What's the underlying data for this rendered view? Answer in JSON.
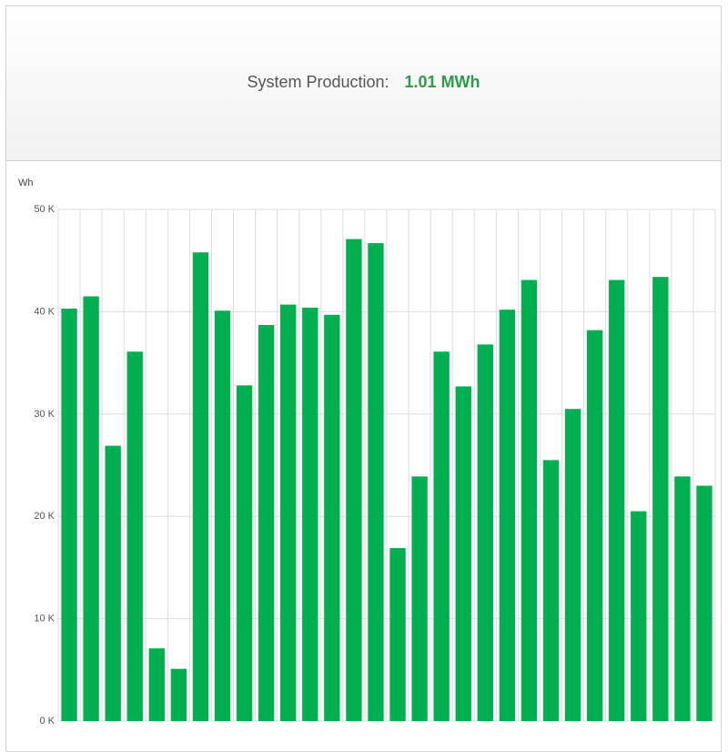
{
  "summary": {
    "label": "System Production:",
    "value": "1.01 MWh"
  },
  "colors": {
    "bar": "#00b050",
    "value_text": "#2e9b4a",
    "grid": "#dddddd"
  },
  "chart_data": {
    "type": "bar",
    "ylabel": "Wh",
    "ylim": [
      0,
      50000
    ],
    "yticks": [
      0,
      10000,
      20000,
      30000,
      40000,
      50000
    ],
    "ytick_labels": [
      "0 K",
      "10 K",
      "20 K",
      "30 K",
      "40 K",
      "50 K"
    ],
    "values": [
      40300,
      41500,
      26900,
      36100,
      7100,
      5100,
      45800,
      40100,
      32800,
      38700,
      40700,
      40400,
      39700,
      47100,
      46700,
      16900,
      23900,
      36100,
      32700,
      36800,
      40200,
      43100,
      25500,
      30500,
      38200,
      43100,
      20500,
      43400,
      23900,
      23000
    ],
    "grid": true
  }
}
